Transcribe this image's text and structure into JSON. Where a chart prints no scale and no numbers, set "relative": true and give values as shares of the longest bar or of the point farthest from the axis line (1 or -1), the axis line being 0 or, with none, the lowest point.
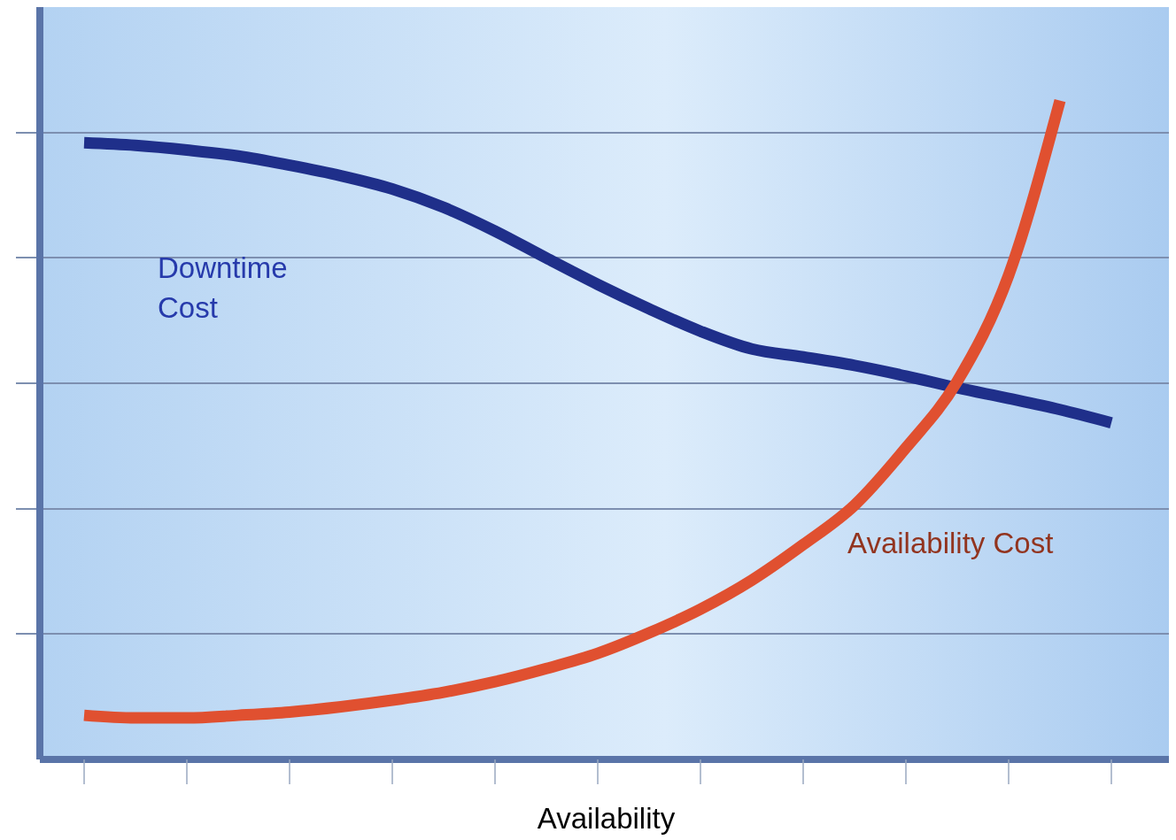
{
  "chart_data": {
    "type": "line",
    "relative": true,
    "xlabel": "Availability",
    "line_style": "solid",
    "marker": "none",
    "categories": [
      null,
      null,
      null,
      null,
      null,
      null,
      null,
      null,
      null,
      null,
      null,
      null,
      null,
      null,
      null,
      null,
      null,
      null,
      null,
      null,
      null
    ],
    "series": [
      {
        "name": "Downtime Cost",
        "color": "#1f2f8a",
        "values": [
          0.936,
          0.932,
          0.925,
          0.916,
          0.902,
          0.886,
          0.866,
          0.838,
          0.802,
          0.761,
          0.721,
          0.684,
          0.65,
          0.623,
          0.611,
          0.598,
          0.582,
          0.564,
          0.548,
          0.531,
          0.511
        ]
      },
      {
        "name": "Availability Cost",
        "color": "#e05030",
        "values": [
          0.067,
          0.063,
          0.063,
          0.067,
          0.072,
          0.08,
          0.09,
          0.102,
          0.118,
          0.138,
          0.161,
          0.192,
          0.228,
          0.272,
          0.326,
          0.386,
          0.473,
          0.574,
          0.735,
          1.0,
          null
        ]
      }
    ]
  }
}
